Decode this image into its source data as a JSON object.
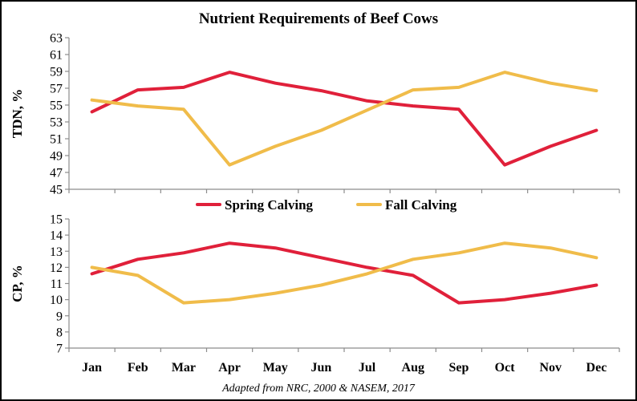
{
  "chart_data": {
    "title": "Nutrient Requirements of Beef Cows",
    "caption": "Adapted from NRC, 2000 & NASEM, 2017",
    "categories": [
      "Jan",
      "Feb",
      "Mar",
      "Apr",
      "May",
      "Jun",
      "Jul",
      "Aug",
      "Sep",
      "Oct",
      "Nov",
      "Dec"
    ],
    "legend": {
      "position": "between-panels",
      "entries": [
        "Spring Calving",
        "Fall Calving"
      ]
    },
    "colors": {
      "spring": "#e0203a",
      "fall": "#f0bc4a"
    },
    "panels": [
      {
        "type": "line",
        "ylabel": "TDN, %",
        "ylim": [
          45,
          63
        ],
        "yticks": [
          45,
          47,
          49,
          51,
          53,
          55,
          57,
          59,
          61,
          63
        ],
        "grid": false,
        "series": [
          {
            "name": "Spring Calving",
            "color": "#e0203a",
            "values": [
              54.2,
              56.8,
              57.1,
              58.9,
              57.6,
              56.7,
              55.5,
              54.9,
              54.5,
              47.9,
              50.1,
              52.0
            ]
          },
          {
            "name": "Fall Calving",
            "color": "#f0bc4a",
            "values": [
              55.6,
              54.9,
              54.5,
              47.9,
              50.1,
              52.0,
              54.4,
              56.8,
              57.1,
              58.9,
              57.6,
              56.7
            ]
          }
        ]
      },
      {
        "type": "line",
        "ylabel": "CP, %",
        "ylim": [
          7,
          15
        ],
        "yticks": [
          7,
          8,
          9,
          10,
          11,
          12,
          13,
          14,
          15
        ],
        "grid": false,
        "series": [
          {
            "name": "Spring Calving",
            "color": "#e0203a",
            "values": [
              11.6,
              12.5,
              12.9,
              13.5,
              13.2,
              12.6,
              12.0,
              11.5,
              9.8,
              10.0,
              10.4,
              10.9
            ]
          },
          {
            "name": "Fall Calving",
            "color": "#f0bc4a",
            "values": [
              12.0,
              11.5,
              9.8,
              10.0,
              10.4,
              10.9,
              11.6,
              12.5,
              12.9,
              13.5,
              13.2,
              12.6
            ]
          }
        ]
      }
    ]
  }
}
